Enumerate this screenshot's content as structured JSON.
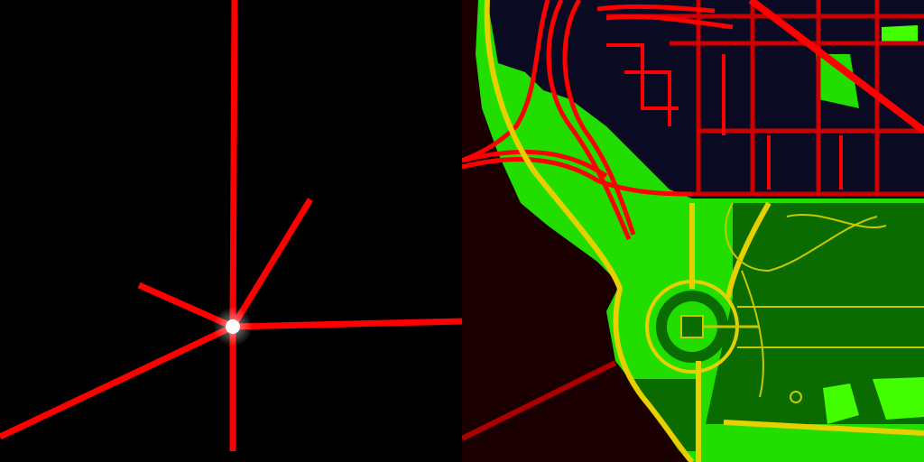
{
  "colors": {
    "background": "#000000",
    "water": "#1a0000",
    "city_block": "#0a0a22",
    "major_road": "#ff0000",
    "minor_road": "#cc0000",
    "boulevard": "#e6d000",
    "park_light": "#22dd00",
    "park_dark": "#0a6b00",
    "park_bright": "#44ff00",
    "path": "#c8c800",
    "node": "#ffffff"
  },
  "icons": {
    "graph_node": "node-dot-icon",
    "memorial": "memorial-icon"
  },
  "left_view": {
    "node_count": 1,
    "edge_count": 6,
    "edge_color": "#ff0000"
  },
  "right_view": {
    "layers": [
      "water",
      "city-grid",
      "major-roads",
      "parks",
      "paths",
      "boulevards"
    ]
  }
}
